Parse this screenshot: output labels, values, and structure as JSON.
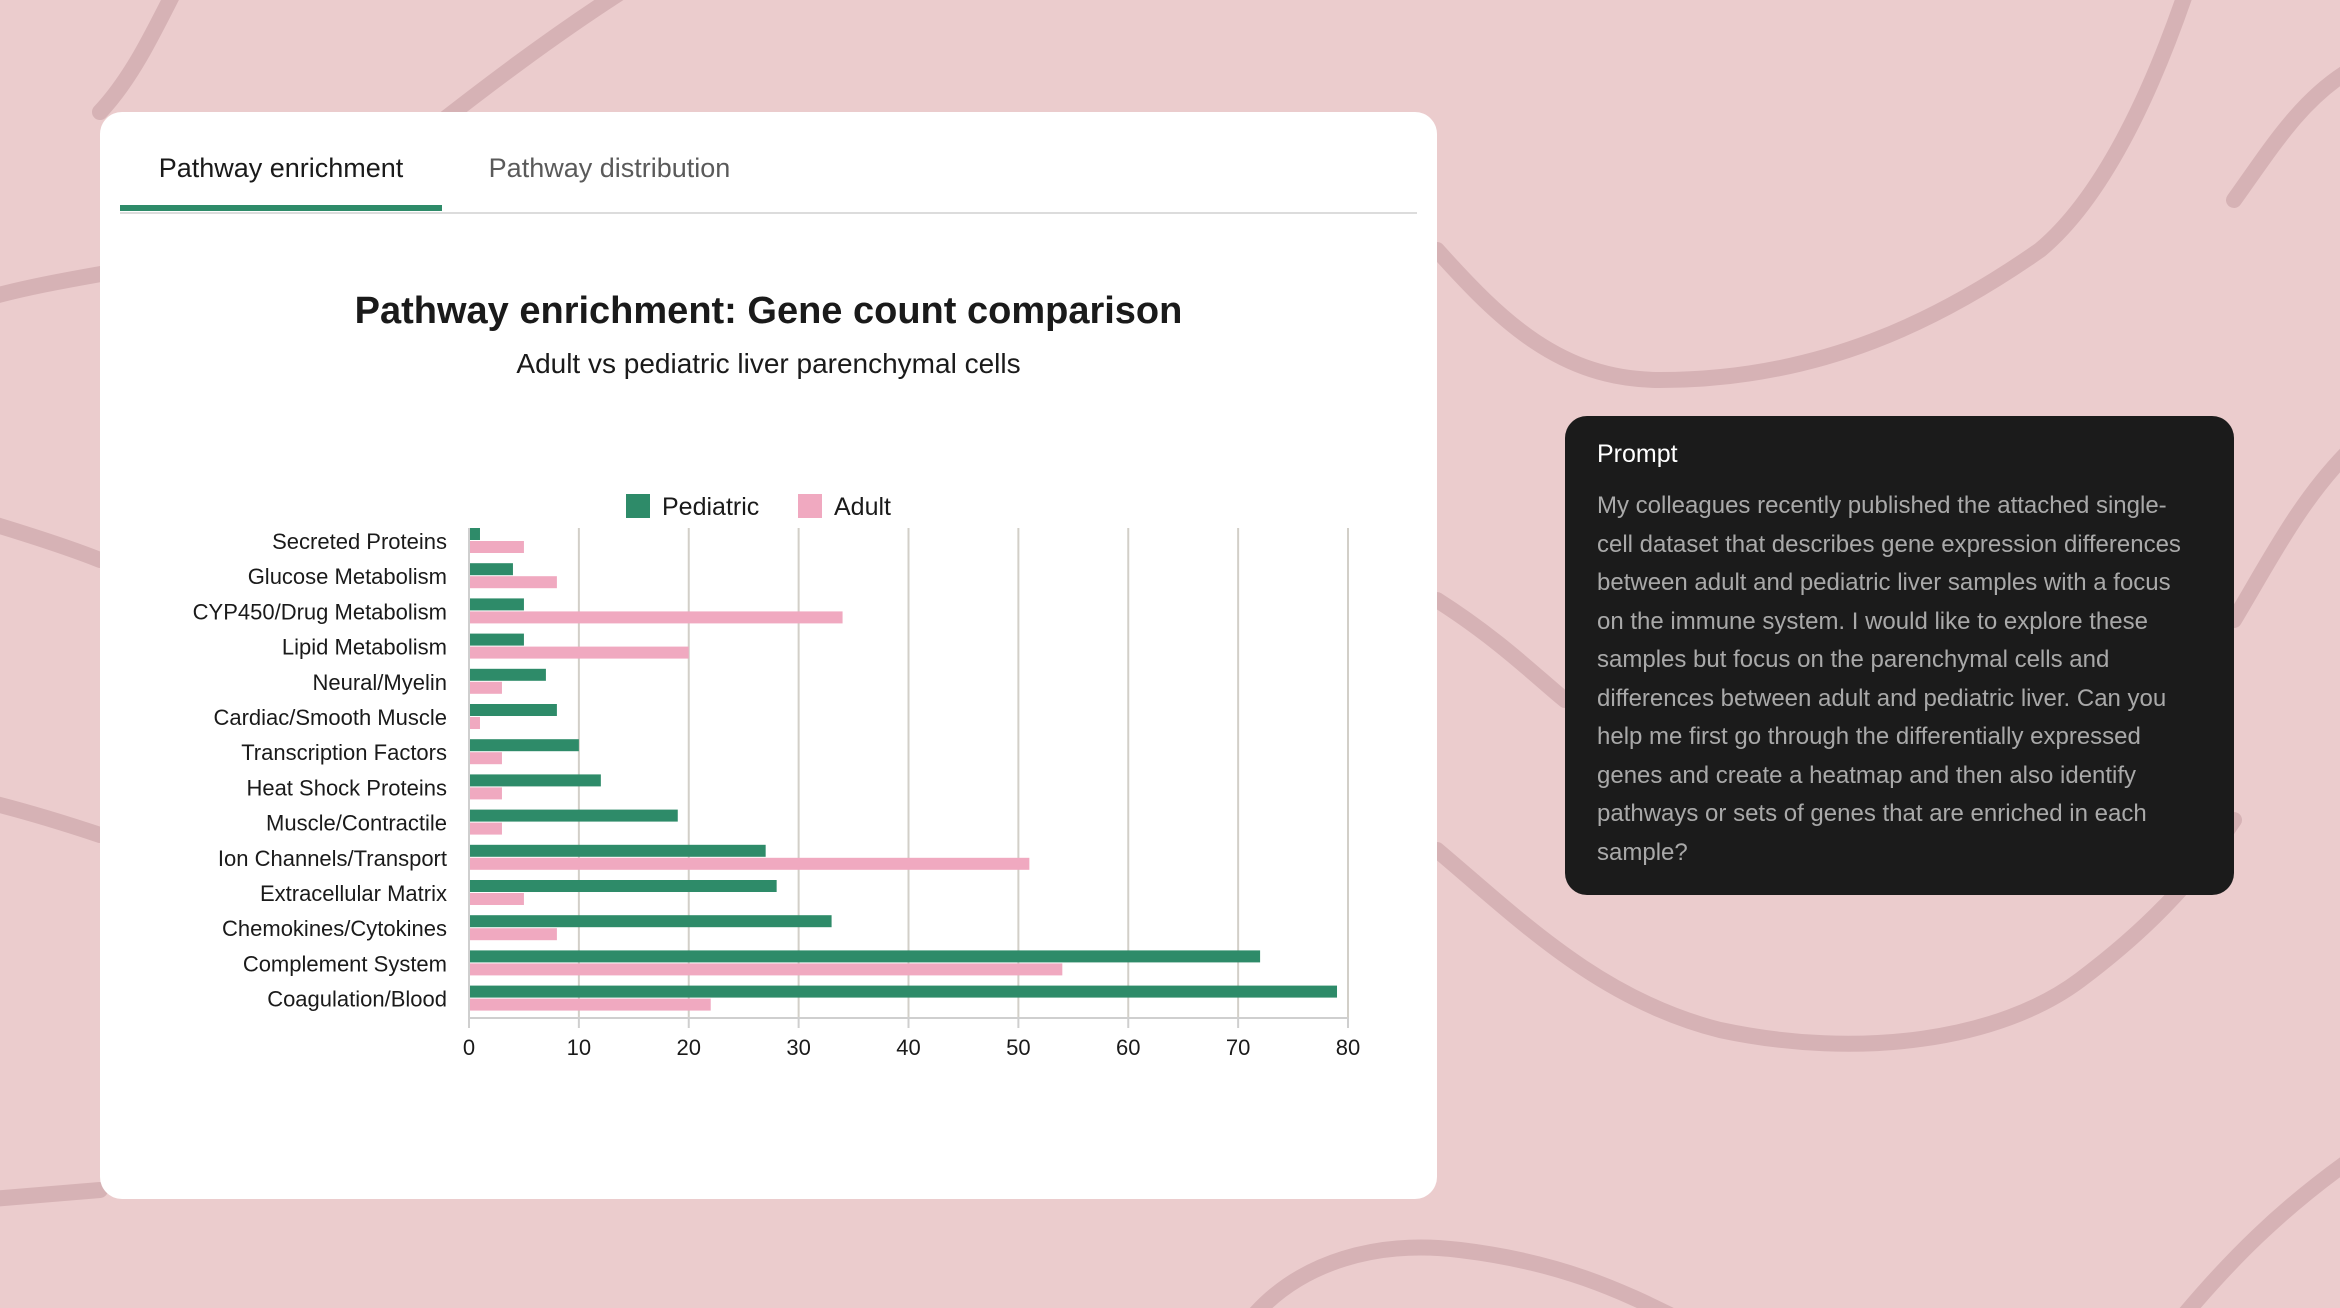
{
  "tabs": [
    {
      "label": "Pathway enrichment",
      "active": true
    },
    {
      "label": "Pathway distribution",
      "active": false
    }
  ],
  "colors": {
    "pediatric": "#2e8b69",
    "adult": "#f0a9c0",
    "accent": "#2e8b69",
    "page_bg": "#ebcccd",
    "prompt_bg": "#1b1b1b"
  },
  "chart_data": {
    "type": "bar",
    "orientation": "horizontal",
    "title": "Pathway enrichment: Gene count comparison",
    "subtitle": "Adult vs pediatric liver parenchymal cells",
    "xlabel": "",
    "ylabel": "",
    "xlim": [
      0,
      80
    ],
    "xticks": [
      "0",
      "10",
      "20",
      "30",
      "40",
      "50",
      "60",
      "70",
      "80"
    ],
    "grid": "vertical",
    "legend_position": "top-center",
    "categories": [
      "Secreted Proteins",
      "Glucose Metabolism",
      "CYP450/Drug Metabolism",
      "Lipid Metabolism",
      "Neural/Myelin",
      "Cardiac/Smooth Muscle",
      "Transcription Factors",
      "Heat Shock Proteins",
      "Muscle/Contractile",
      "Ion Channels/Transport",
      "Extracellular Matrix",
      "Chemokines/Cytokines",
      "Complement System",
      "Coagulation/Blood"
    ],
    "series": [
      {
        "name": "Pediatric",
        "values": [
          1,
          4,
          5,
          5,
          7,
          8,
          10,
          12,
          19,
          27,
          28,
          33,
          72,
          79
        ]
      },
      {
        "name": "Adult",
        "values": [
          5,
          8,
          34,
          20,
          3,
          1,
          3,
          3,
          3,
          51,
          5,
          8,
          54,
          22
        ]
      }
    ]
  },
  "prompt": {
    "label": "Prompt",
    "text": "My colleagues recently published the attached single-cell dataset that describes gene expression differences between adult and pediatric liver samples with a focus on the immune system. I would like to explore these samples but focus on the parenchymal cells and differences between adult and pediatric liver. Can you help me first go through the differentially expressed genes and create a heatmap and then also identify pathways or sets of genes that are enriched in each sample?"
  }
}
